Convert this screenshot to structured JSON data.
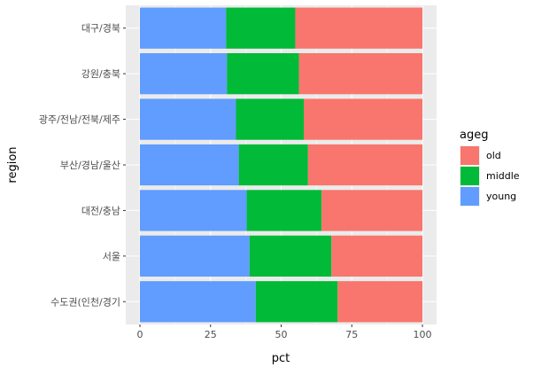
{
  "chart_data": {
    "type": "bar",
    "orientation": "horizontal",
    "stacked": true,
    "xlabel": "pct",
    "ylabel": "region",
    "xlim": [
      0,
      100
    ],
    "xticks": [
      0,
      25,
      50,
      75,
      100
    ],
    "grid": true,
    "legend_position": "right",
    "legend_title": "ageg",
    "categories": [
      "대구/경북",
      "강원/충북",
      "광주/전남/전북/제주",
      "부산/경남/울산",
      "대전/충남",
      "서울",
      "수도권(인천/경기"
    ],
    "series": [
      {
        "name": "young",
        "color": "#619CFF",
        "values": [
          30.5,
          30.8,
          34.0,
          35.0,
          37.8,
          38.8,
          41.0
        ]
      },
      {
        "name": "middle",
        "color": "#00BA38",
        "values": [
          24.5,
          25.5,
          24.0,
          24.5,
          26.5,
          29.0,
          29.0
        ]
      },
      {
        "name": "old",
        "color": "#F8766D",
        "values": [
          45.0,
          43.7,
          42.0,
          40.5,
          35.7,
          32.2,
          30.0
        ]
      }
    ],
    "legend_order": [
      "old",
      "middle",
      "young"
    ]
  }
}
